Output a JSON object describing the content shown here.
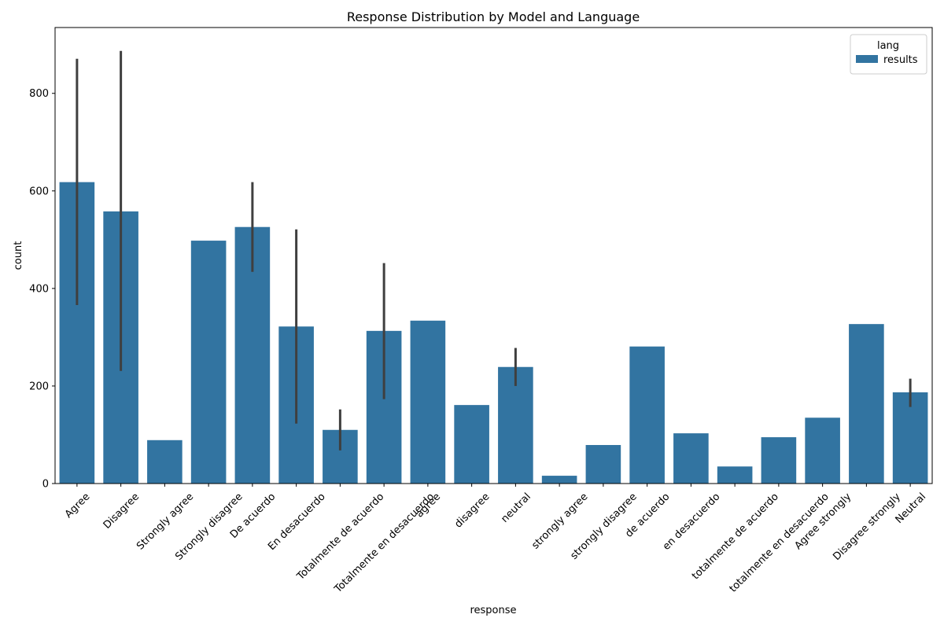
{
  "chart_data": {
    "type": "bar",
    "title": "Response Distribution by Model and Language",
    "xlabel": "response",
    "ylabel": "count",
    "ylim": [
      0,
      935
    ],
    "yticks": [
      0,
      200,
      400,
      600,
      800
    ],
    "grid": false,
    "categories": [
      "Agree",
      "Disagree",
      "Strongly agree",
      "Strongly disagree",
      "De acuerdo",
      "En desacuerdo",
      "Totalmente de acuerdo",
      "Totalmente en desacuerdo",
      "agree",
      "disagree",
      "neutral",
      "strongly agree",
      "strongly disagree",
      "de acuerdo",
      "en desacuerdo",
      "totalmente de acuerdo",
      "totalmente en desacuerdo",
      "Agree strongly",
      "Disagree strongly",
      "Neutral"
    ],
    "series": [
      {
        "name": "results",
        "color": "#3274a1",
        "values": [
          618,
          558,
          89,
          498,
          526,
          322,
          110,
          313,
          334,
          161,
          239,
          16,
          79,
          281,
          103,
          35,
          95,
          135,
          327,
          187
        ],
        "error_bars": [
          [
            366,
            871
          ],
          [
            231,
            887
          ],
          null,
          null,
          [
            434,
            618
          ],
          [
            123,
            521
          ],
          [
            68,
            152
          ],
          [
            173,
            452
          ],
          null,
          null,
          [
            200,
            278
          ],
          null,
          null,
          null,
          null,
          null,
          null,
          null,
          null,
          [
            157,
            215
          ]
        ]
      }
    ],
    "legend": {
      "title": "lang",
      "placement": "top-right",
      "entries": [
        "results"
      ]
    },
    "error_bar_color": "#3f3f3f"
  }
}
